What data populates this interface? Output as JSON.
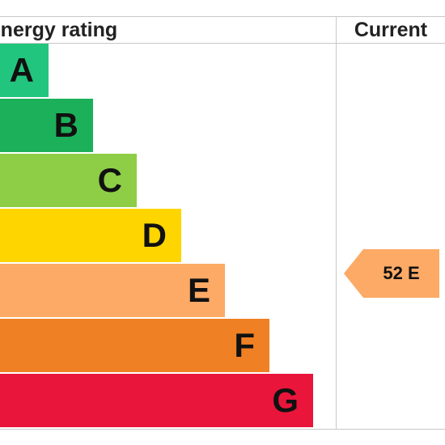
{
  "header": {
    "rating_title": "Energy rating",
    "current_title": "Current"
  },
  "chart_data": {
    "type": "bar",
    "title": "Energy rating",
    "categories": [
      "A",
      "B",
      "C",
      "D",
      "E",
      "F",
      "G"
    ],
    "band_colors": [
      "#22c57d",
      "#1cb05a",
      "#8dce46",
      "#ffd500",
      "#fcaa65",
      "#ef8023",
      "#e9153b"
    ],
    "current": {
      "value": 52,
      "band": "E",
      "label": "52 E",
      "color": "#fcaa65"
    }
  }
}
